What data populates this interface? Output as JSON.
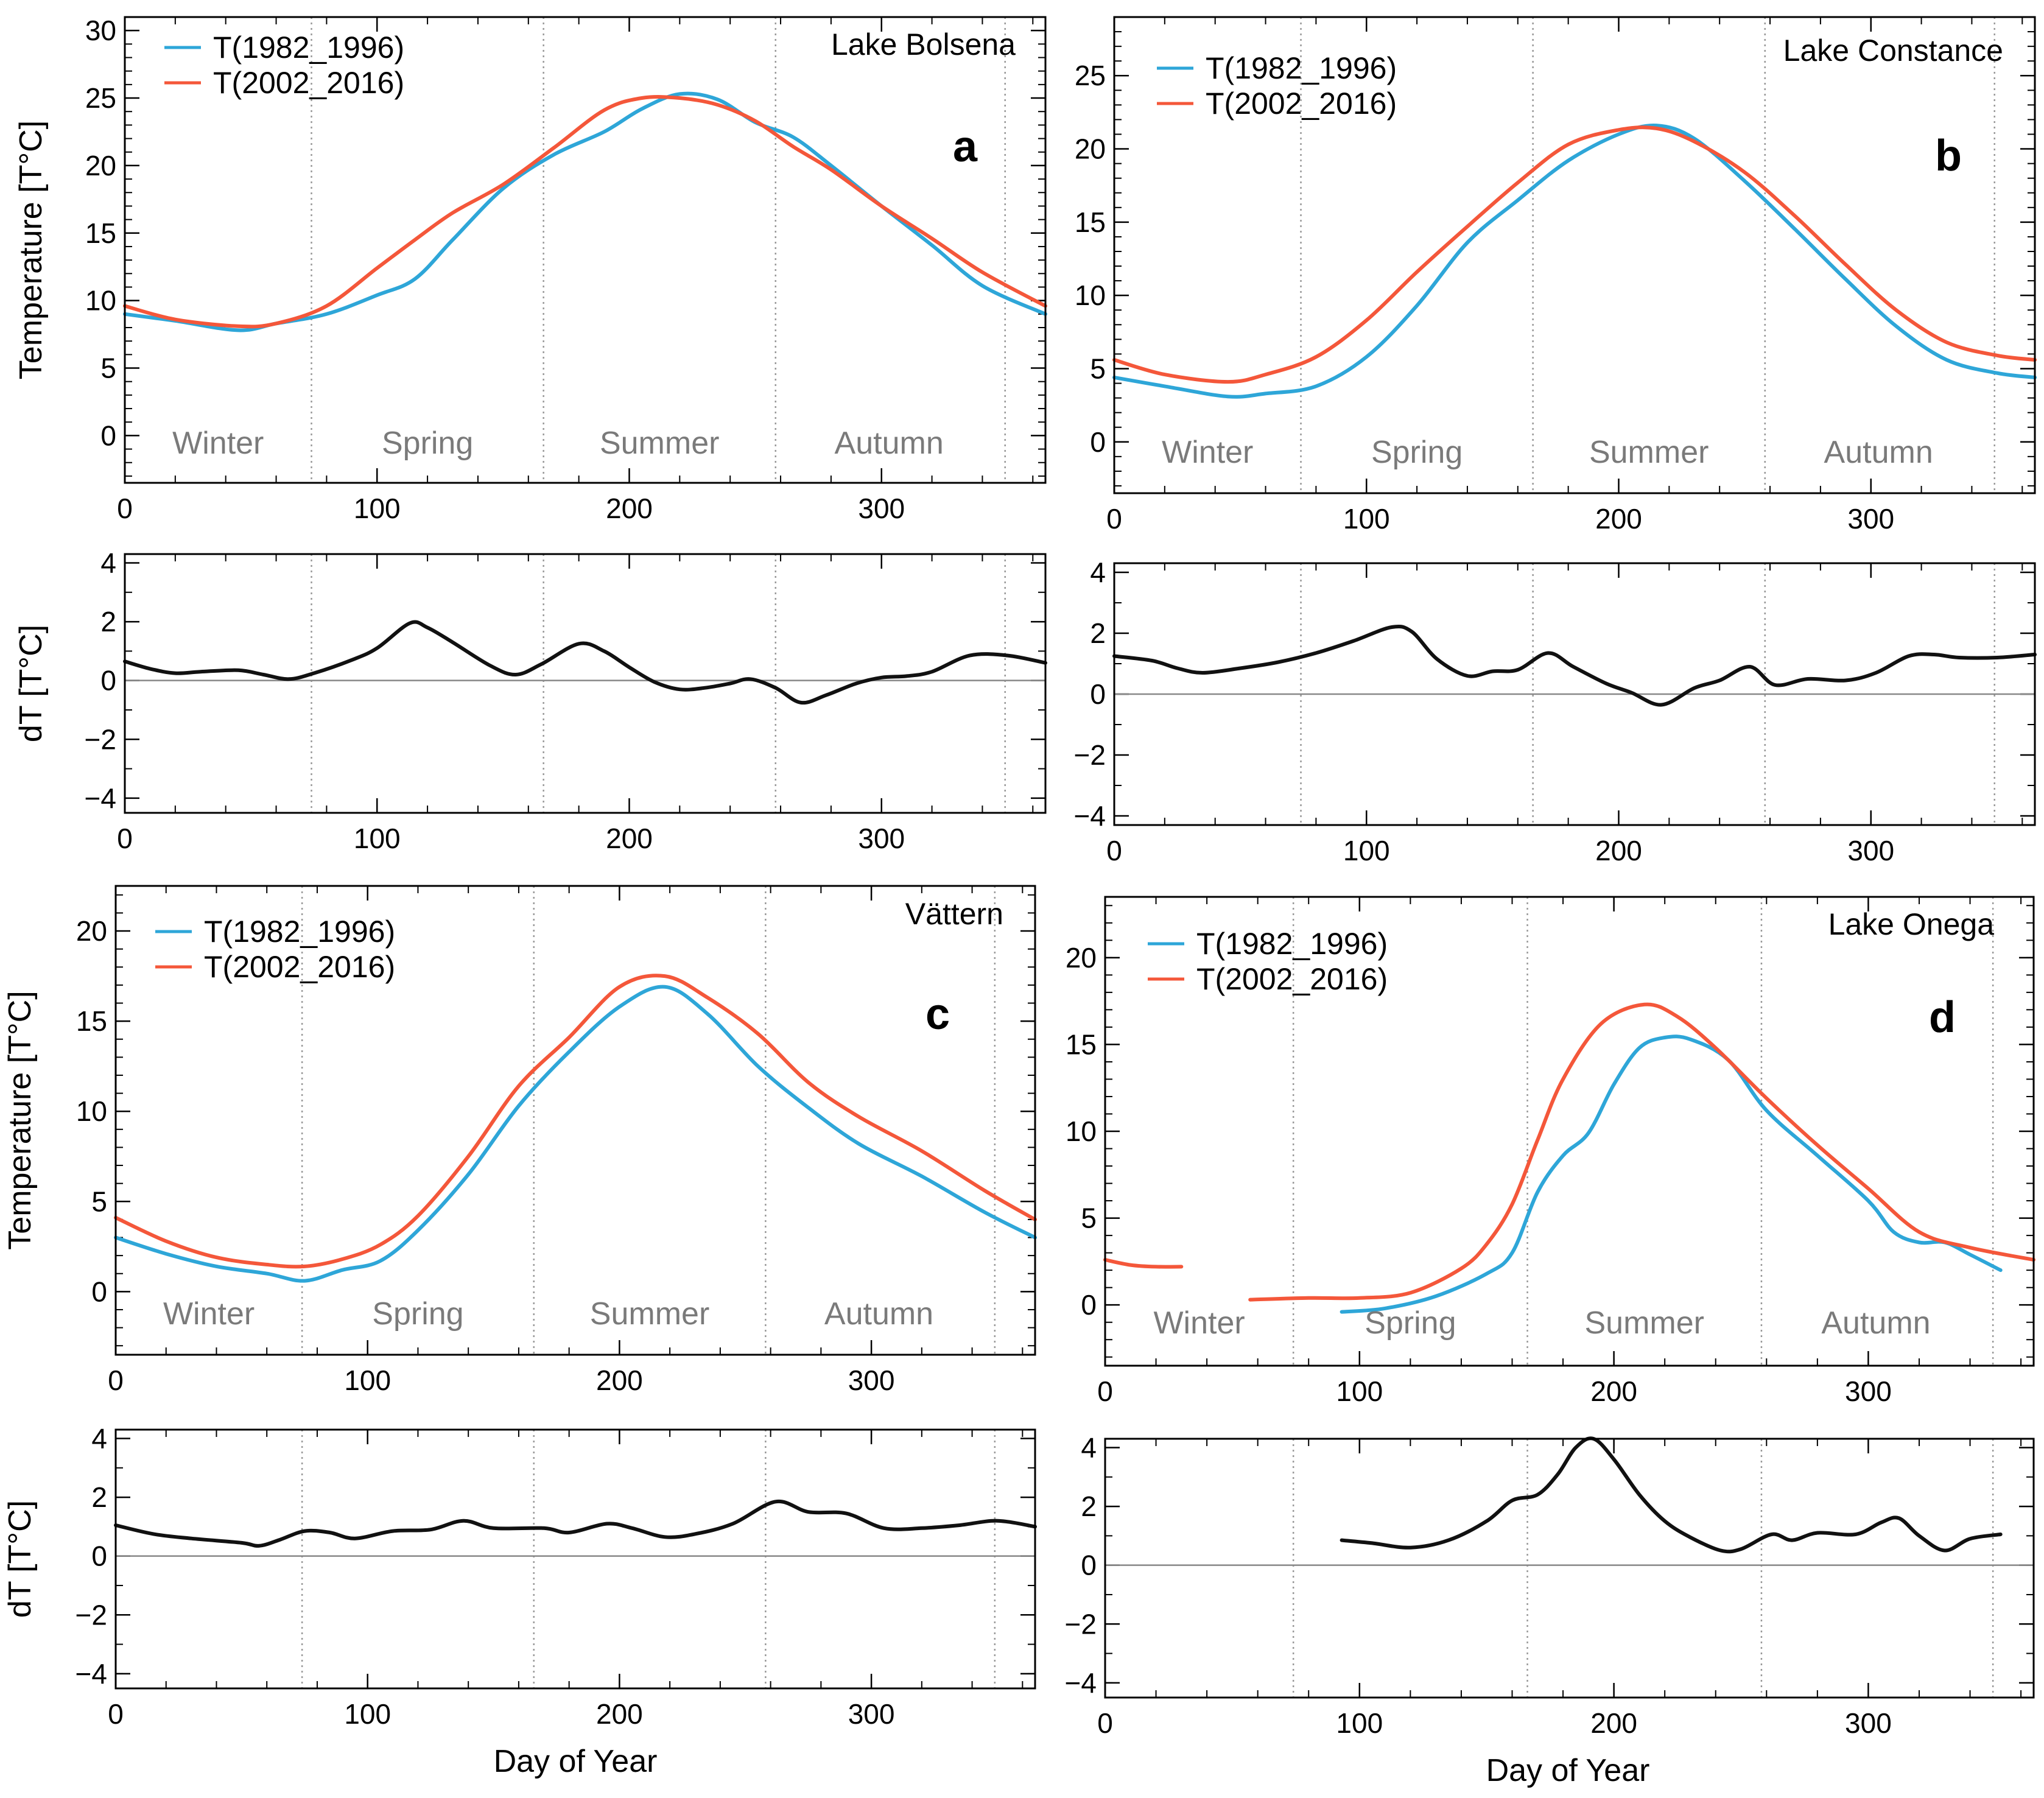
{
  "figure": {
    "xlabel_bottom": "Day of Year",
    "colors": {
      "early": "#2ea6d8",
      "late": "#f4573a",
      "dt": "#111111",
      "season_text": "#7a7a7a",
      "divider": "#9a9a9a",
      "zero_line": "#888888"
    },
    "season_labels": [
      "Winter",
      "Spring",
      "Summer",
      "Autumn"
    ],
    "season_boundaries": [
      74,
      166,
      258,
      349
    ],
    "legend": [
      "T(1982_1996)",
      "T(2002_2016)"
    ]
  },
  "chart_data": [
    {
      "panel": "a",
      "type": "line",
      "lake": "Lake Bolsena",
      "ylabel": "Temperature [T°C]",
      "dt_ylabel": "dT [T°C]",
      "xlim": [
        0,
        365
      ],
      "xticks": [
        0,
        100,
        200,
        300
      ],
      "ylim": [
        -3.5,
        31
      ],
      "yticks": [
        0,
        5,
        10,
        15,
        20,
        25,
        30
      ],
      "dt_ylim": [
        -4.5,
        4.3
      ],
      "dt_yticks": [
        -4,
        -2,
        0,
        2,
        4
      ],
      "series": [
        {
          "name": "T(1982_1996)",
          "x": [
            0,
            20,
            45,
            60,
            80,
            100,
            115,
            130,
            150,
            170,
            190,
            205,
            220,
            235,
            250,
            265,
            280,
            300,
            320,
            340,
            365
          ],
          "y": [
            9,
            8.5,
            7.8,
            8.3,
            9,
            10.4,
            11.6,
            14.5,
            18.3,
            20.8,
            22.5,
            24.2,
            25.3,
            24.9,
            23.2,
            22.1,
            20,
            17,
            14.1,
            11.1,
            9
          ]
        },
        {
          "name": "T(2002_2016)",
          "x": [
            0,
            20,
            45,
            60,
            80,
            100,
            115,
            130,
            150,
            170,
            190,
            205,
            220,
            235,
            250,
            265,
            280,
            300,
            320,
            340,
            365
          ],
          "y": [
            9.6,
            8.6,
            8.1,
            8.3,
            9.6,
            12.4,
            14.5,
            16.5,
            18.6,
            21.3,
            24.1,
            25,
            25,
            24.5,
            23.3,
            21.4,
            19.7,
            17,
            14.6,
            12.1,
            9.6
          ]
        }
      ],
      "dt": {
        "x": [
          0,
          10,
          20,
          30,
          45,
          55,
          65,
          75,
          90,
          100,
          113,
          120,
          130,
          145,
          155,
          165,
          180,
          190,
          200,
          210,
          220,
          230,
          240,
          248,
          258,
          268,
          278,
          290,
          300,
          310,
          320,
          335,
          350,
          365
        ],
        "y": [
          0.65,
          0.4,
          0.25,
          0.3,
          0.35,
          0.2,
          0.05,
          0.25,
          0.7,
          1.1,
          1.95,
          1.8,
          1.3,
          0.5,
          0.2,
          0.55,
          1.25,
          1,
          0.45,
          -0.05,
          -0.3,
          -0.25,
          -0.1,
          0.05,
          -0.25,
          -0.75,
          -0.5,
          -0.1,
          0.1,
          0.15,
          0.3,
          0.85,
          0.85,
          0.6
        ]
      }
    },
    {
      "panel": "b",
      "type": "line",
      "lake": "Lake Constance",
      "ylabel": "",
      "dt_ylabel": "",
      "xlim": [
        0,
        365
      ],
      "xticks": [
        0,
        100,
        200,
        300
      ],
      "ylim": [
        -3.5,
        29
      ],
      "yticks": [
        0,
        5,
        10,
        15,
        20,
        25
      ],
      "dt_ylim": [
        -4.3,
        4.3
      ],
      "dt_yticks": [
        -4,
        -2,
        0,
        2,
        4
      ],
      "series": [
        {
          "name": "T(1982_1996)",
          "x": [
            0,
            20,
            45,
            60,
            80,
            100,
            120,
            140,
            160,
            180,
            200,
            215,
            230,
            250,
            270,
            290,
            310,
            330,
            350,
            365
          ],
          "y": [
            4.4,
            3.8,
            3.1,
            3.3,
            3.8,
            5.8,
            9.3,
            13.6,
            16.5,
            19.2,
            21,
            21.6,
            20.7,
            17.8,
            14.5,
            11.1,
            7.9,
            5.6,
            4.7,
            4.4
          ]
        },
        {
          "name": "T(2002_2016)",
          "x": [
            0,
            20,
            45,
            60,
            80,
            100,
            120,
            140,
            160,
            180,
            200,
            215,
            230,
            250,
            270,
            290,
            310,
            330,
            350,
            365
          ],
          "y": [
            5.6,
            4.6,
            4.1,
            4.6,
            5.8,
            8.3,
            11.6,
            14.7,
            17.7,
            20.3,
            21.3,
            21.4,
            20.5,
            18.4,
            15.4,
            12.1,
            9,
            6.8,
            5.9,
            5.6
          ]
        }
      ],
      "dt": {
        "x": [
          0,
          15,
          25,
          35,
          50,
          65,
          80,
          95,
          110,
          118,
          128,
          140,
          150,
          160,
          172,
          182,
          195,
          205,
          217,
          230,
          240,
          252,
          262,
          275,
          290,
          302,
          315,
          325,
          335,
          350,
          365
        ],
        "y": [
          1.25,
          1.1,
          0.85,
          0.7,
          0.85,
          1.05,
          1.35,
          1.75,
          2.2,
          2.05,
          1.15,
          0.6,
          0.75,
          0.8,
          1.35,
          0.9,
          0.35,
          0.05,
          -0.35,
          0.2,
          0.45,
          0.9,
          0.3,
          0.5,
          0.45,
          0.7,
          1.25,
          1.3,
          1.2,
          1.2,
          1.3
        ]
      }
    },
    {
      "panel": "c",
      "type": "line",
      "lake": "Vättern",
      "ylabel": "Temperature [T°C]",
      "dt_ylabel": "dT [T°C]",
      "xlim": [
        0,
        365
      ],
      "xticks": [
        0,
        100,
        200,
        300
      ],
      "ylim": [
        -3.5,
        22.5
      ],
      "yticks": [
        0,
        5,
        10,
        15,
        20
      ],
      "dt_ylim": [
        -4.5,
        4.3
      ],
      "dt_yticks": [
        -4,
        -2,
        0,
        2,
        4
      ],
      "series": [
        {
          "name": "T(1982_1996)",
          "x": [
            0,
            20,
            40,
            60,
            75,
            90,
            105,
            120,
            140,
            160,
            180,
            200,
            218,
            235,
            255,
            275,
            295,
            320,
            345,
            365
          ],
          "y": [
            3,
            2.1,
            1.4,
            1,
            0.6,
            1.2,
            1.7,
            3.4,
            6.5,
            10.3,
            13.3,
            15.8,
            16.9,
            15.4,
            12.5,
            10.2,
            8.2,
            6.4,
            4.4,
            3
          ]
        },
        {
          "name": "T(2002_2016)",
          "x": [
            0,
            20,
            40,
            60,
            75,
            90,
            105,
            120,
            140,
            160,
            180,
            200,
            218,
            235,
            255,
            275,
            295,
            320,
            345,
            365
          ],
          "y": [
            4.1,
            2.8,
            1.9,
            1.5,
            1.4,
            1.8,
            2.6,
            4.2,
            7.5,
            11.4,
            14.1,
            16.9,
            17.5,
            16.3,
            14.3,
            11.6,
            9.7,
            7.8,
            5.6,
            4
          ]
        }
      ],
      "dt": {
        "x": [
          0,
          15,
          30,
          50,
          57,
          65,
          75,
          85,
          95,
          110,
          125,
          138,
          150,
          170,
          180,
          195,
          205,
          218,
          230,
          245,
          262,
          275,
          290,
          305,
          320,
          335,
          350,
          365
        ],
        "y": [
          1.05,
          0.75,
          0.6,
          0.45,
          0.35,
          0.55,
          0.85,
          0.8,
          0.6,
          0.85,
          0.9,
          1.2,
          0.95,
          0.95,
          0.8,
          1.1,
          0.95,
          0.65,
          0.75,
          1.1,
          1.85,
          1.5,
          1.45,
          0.95,
          0.95,
          1.05,
          1.2,
          1
        ]
      }
    },
    {
      "panel": "d",
      "type": "line",
      "lake": "Lake Onega",
      "ylabel": "",
      "dt_ylabel": "",
      "xlim": [
        0,
        365
      ],
      "xticks": [
        0,
        100,
        200,
        300
      ],
      "ylim": [
        -3.5,
        23.5
      ],
      "yticks": [
        0,
        5,
        10,
        15,
        20
      ],
      "dt_ylim": [
        -4.5,
        4.3
      ],
      "dt_yticks": [
        -4,
        -2,
        0,
        2,
        4
      ],
      "series": [
        {
          "name": "T(1982_1996)",
          "segments": [
            {
              "x": [
                93,
                110,
                130,
                150,
                160,
                170,
                180,
                190,
                200,
                210,
                220,
                230,
                245,
                260,
                280,
                300,
                310,
                320,
                330,
                340,
                352
              ],
              "y": [
                -0.4,
                -0.2,
                0.5,
                1.8,
                3,
                6.5,
                8.6,
                9.9,
                12.7,
                14.8,
                15.4,
                15.3,
                14.1,
                11.2,
                8.6,
                6,
                4.2,
                3.6,
                3.6,
                2.9,
                2
              ]
            }
          ]
        },
        {
          "name": "T(2002_2016)",
          "segments": [
            {
              "x": [
                0,
                10,
                20,
                30
              ],
              "y": [
                2.6,
                2.3,
                2.2,
                2.2
              ]
            },
            {
              "x": [
                57,
                80,
                100,
                120,
                140,
                150,
                160,
                170,
                180,
                195,
                212,
                225,
                240,
                260,
                280,
                300,
                320,
                340,
                365
              ],
              "y": [
                0.3,
                0.4,
                0.4,
                0.7,
                2.1,
                3.5,
                5.8,
                9.5,
                13,
                16.2,
                17.3,
                16.6,
                14.8,
                11.9,
                9.2,
                6.7,
                4.2,
                3.3,
                2.6
              ]
            }
          ]
        }
      ],
      "dt": {
        "x": [
          93,
          105,
          120,
          135,
          150,
          160,
          170,
          178,
          185,
          192,
          200,
          210,
          220,
          230,
          242,
          250,
          262,
          270,
          280,
          295,
          305,
          312,
          320,
          330,
          340,
          352
        ],
        "y": [
          0.85,
          0.75,
          0.6,
          0.85,
          1.5,
          2.2,
          2.4,
          3.1,
          4,
          4.3,
          3.6,
          2.4,
          1.5,
          0.95,
          0.5,
          0.55,
          1.05,
          0.85,
          1.1,
          1.05,
          1.45,
          1.6,
          1,
          0.5,
          0.9,
          1.05
        ]
      }
    }
  ]
}
